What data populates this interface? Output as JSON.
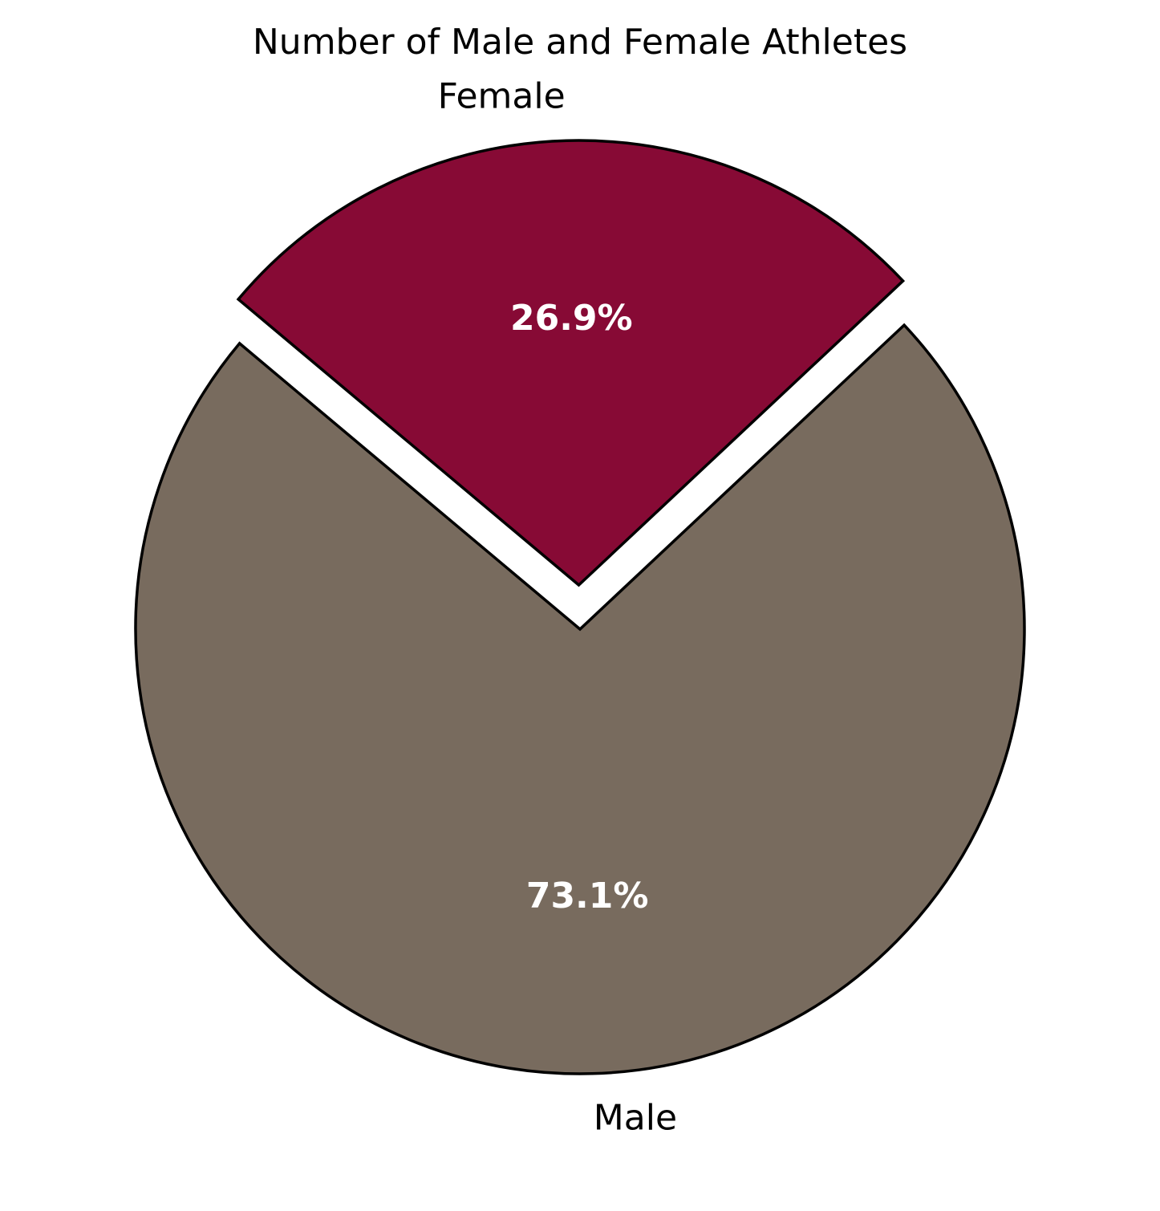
{
  "chart_data": {
    "type": "pie",
    "title": "Number of Male and Female Athletes",
    "slices": [
      {
        "label": "Male",
        "value": 73.1,
        "display": "73.1%",
        "color": "#786b5e",
        "exploded": false
      },
      {
        "label": "Female",
        "value": 26.9,
        "display": "26.9%",
        "color": "#870a35",
        "exploded": true
      }
    ],
    "start_angle_deg": 140,
    "direction": "counterclockwise",
    "legend": "none"
  }
}
